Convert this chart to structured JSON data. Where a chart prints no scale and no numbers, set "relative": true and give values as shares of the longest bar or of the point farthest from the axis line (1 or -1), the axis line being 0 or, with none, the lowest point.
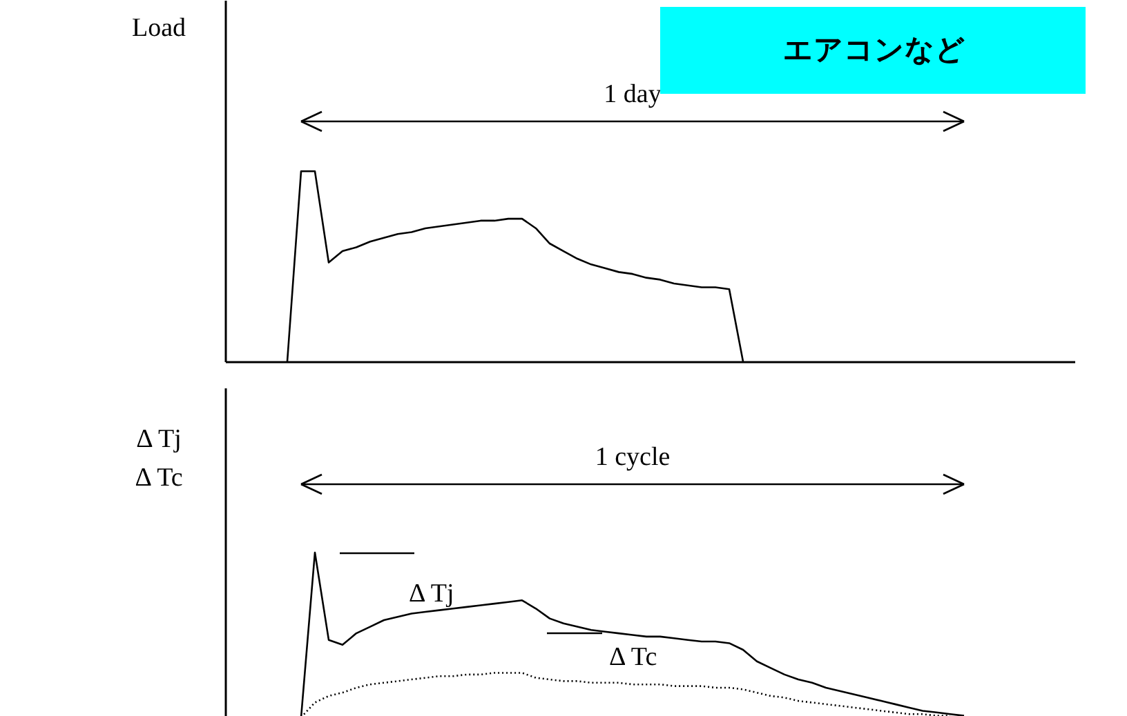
{
  "chart_data": [
    {
      "type": "line",
      "title": "エアコンなど",
      "ylabel": "Load",
      "relative": true,
      "tick_labels": false,
      "grid": false,
      "marker": "none",
      "annotations": [
        "1 day"
      ],
      "categories": [
        null,
        null,
        null,
        null,
        null,
        null,
        null,
        null,
        null,
        null,
        null,
        null,
        null,
        null,
        null,
        null,
        null,
        null,
        null,
        null,
        null,
        null,
        null,
        null,
        null,
        null,
        null,
        null,
        null,
        null,
        null,
        null,
        null,
        null,
        null,
        null,
        null,
        null,
        null,
        null,
        null,
        null,
        null,
        null,
        null,
        null,
        null,
        null,
        null,
        null,
        null
      ],
      "series": [
        {
          "color": "#000000",
          "line_style": "solid",
          "values": [
            0,
            1,
            1,
            0.52,
            0.58,
            0.6,
            0.63,
            0.65,
            0.67,
            0.68,
            0.7,
            0.71,
            0.72,
            0.73,
            0.74,
            0.74,
            0.75,
            0.75,
            0.7,
            0.62,
            0.58,
            0.54,
            0.51,
            0.49,
            0.47,
            0.46,
            0.44,
            0.43,
            0.41,
            0.4,
            0.39,
            0.39,
            0.38,
            0,
            null,
            null,
            null,
            null,
            null,
            null,
            null,
            null,
            null,
            null,
            null,
            null,
            null,
            null,
            null,
            null,
            null
          ]
        }
      ]
    },
    {
      "type": "line",
      "ylabel": "Δ Tj\nΔ Tc",
      "relative": true,
      "tick_labels": false,
      "grid": false,
      "marker": "none",
      "annotations": [
        "1 cycle"
      ],
      "categories": [
        null,
        null,
        null,
        null,
        null,
        null,
        null,
        null,
        null,
        null,
        null,
        null,
        null,
        null,
        null,
        null,
        null,
        null,
        null,
        null,
        null,
        null,
        null,
        null,
        null,
        null,
        null,
        null,
        null,
        null,
        null,
        null,
        null,
        null,
        null,
        null,
        null,
        null,
        null,
        null,
        null,
        null,
        null,
        null,
        null,
        null,
        null,
        null,
        null,
        null,
        null
      ],
      "series": [
        {
          "name": "Δ Tj",
          "color": "#000000",
          "line_style": "solid",
          "values": [
            null,
            0,
            1,
            0.47,
            0.44,
            0.51,
            0.55,
            0.59,
            0.61,
            0.63,
            0.64,
            0.65,
            0.66,
            0.67,
            0.68,
            0.69,
            0.7,
            0.71,
            0.66,
            0.6,
            0.57,
            0.55,
            0.53,
            0.52,
            0.51,
            0.5,
            0.49,
            0.49,
            0.48,
            0.47,
            0.46,
            0.46,
            0.45,
            0.41,
            0.34,
            0.3,
            0.26,
            0.23,
            0.21,
            0.18,
            0.16,
            0.14,
            0.12,
            0.1,
            0.08,
            0.06,
            0.04,
            0.03,
            0.02,
            0.01,
            null
          ]
        },
        {
          "name": "Δ Tc",
          "color": "#000000",
          "line_style": "dotted",
          "values": [
            null,
            0,
            0.09,
            0.13,
            0.15,
            0.18,
            0.2,
            0.21,
            0.22,
            0.23,
            0.24,
            0.25,
            0.25,
            0.26,
            0.26,
            0.27,
            0.27,
            0.27,
            0.24,
            0.23,
            0.22,
            0.22,
            0.21,
            0.21,
            0.21,
            0.2,
            0.2,
            0.2,
            0.19,
            0.19,
            0.19,
            0.18,
            0.18,
            0.17,
            0.15,
            0.13,
            0.12,
            0.1,
            0.09,
            0.08,
            0.07,
            0.06,
            0.05,
            0.04,
            0.03,
            0.02,
            0.02,
            0.01,
            0.01,
            null,
            null
          ]
        }
      ]
    }
  ]
}
